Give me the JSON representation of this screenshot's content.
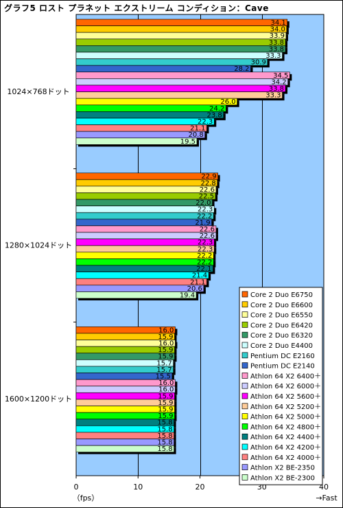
{
  "chart_data": {
    "type": "bar",
    "orientation": "horizontal",
    "title": "グラフ5 ロスト プラネット エクストリーム コンディション：Cave",
    "xlabel": "（fps）",
    "x_direction_label": "→Fast",
    "xlim": [
      0,
      40
    ],
    "xticks": [
      "0",
      "10",
      "20",
      "30",
      "40"
    ],
    "grid": "vertical",
    "plot_background": "#99ccff",
    "legend_position": "bottom-right",
    "categories": [
      "1024×768ドット",
      "1280×1024ドット",
      "1600×1200ドット"
    ],
    "series": [
      {
        "name": "Core 2 Duo E6750",
        "color": "#ff6600",
        "values": [
          34.1,
          22.9,
          16.0
        ]
      },
      {
        "name": "Core 2 Duo E6600",
        "color": "#ffcc00",
        "values": [
          34.0,
          22.8,
          15.9
        ]
      },
      {
        "name": "Core 2 Duo E6550",
        "color": "#ffff99",
        "values": [
          33.9,
          22.6,
          16.0
        ]
      },
      {
        "name": "Core 2 Duo E6420",
        "color": "#99cc00",
        "values": [
          33.8,
          22.5,
          15.9
        ]
      },
      {
        "name": "Core 2 Duo E6320",
        "color": "#339966",
        "values": [
          33.8,
          22.0,
          15.9
        ]
      },
      {
        "name": "Core 2 Duo E4400",
        "color": "#ccffff",
        "values": [
          33.3,
          22.3,
          15.7
        ]
      },
      {
        "name": "Pentium DC E2160",
        "color": "#33cccc",
        "values": [
          30.9,
          22.2,
          15.7
        ]
      },
      {
        "name": "Pentium DC E2140",
        "color": "#3366cc",
        "values": [
          28.2,
          21.9,
          15.5
        ]
      },
      {
        "name": "Athlon 64 X2 6400＋",
        "color": "#ff99cc",
        "values": [
          34.5,
          22.6,
          16.0
        ]
      },
      {
        "name": "Athlon 64 X2 6000＋",
        "color": "#ccccff",
        "values": [
          34.2,
          22.6,
          16.0
        ]
      },
      {
        "name": "Athlon 64 X2 5600＋",
        "color": "#ff00ff",
        "values": [
          33.8,
          22.3,
          15.9
        ]
      },
      {
        "name": "Athlon 64 X2 5200＋",
        "color": "#ffcc99",
        "values": [
          33.3,
          22.3,
          15.9
        ]
      },
      {
        "name": "Athlon 64 X2 5000＋",
        "color": "#ffff00",
        "values": [
          26.0,
          22.2,
          15.9
        ]
      },
      {
        "name": "Athlon 64 X2 4800＋",
        "color": "#00ff00",
        "values": [
          24.2,
          22.2,
          15.9
        ]
      },
      {
        "name": "Athlon 64 X2 4400＋",
        "color": "#008080",
        "values": [
          23.8,
          22.1,
          15.8
        ]
      },
      {
        "name": "Athlon 64 X2 4200＋",
        "color": "#00ffff",
        "values": [
          22.3,
          21.4,
          15.8
        ]
      },
      {
        "name": "Athlon 64 X2 4000＋",
        "color": "#ff8080",
        "values": [
          21.1,
          21.1,
          15.8
        ]
      },
      {
        "name": "Athlon X2 BE-2350",
        "color": "#9999ff",
        "values": [
          20.8,
          20.6,
          15.8
        ]
      },
      {
        "name": "Athlon X2 BE-2300",
        "color": "#ccffcc",
        "values": [
          19.5,
          19.4,
          15.8
        ]
      }
    ]
  }
}
